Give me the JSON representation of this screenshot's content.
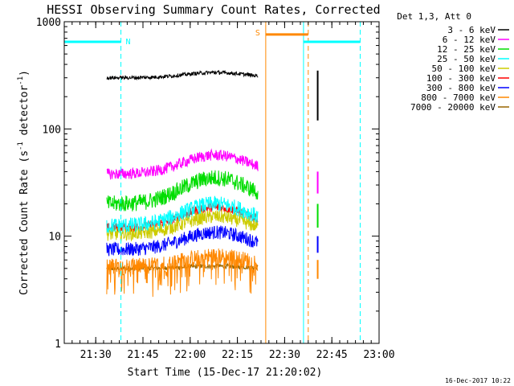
{
  "chart_data": {
    "type": "line",
    "title": "HESSI Observing Summary Count Rates, Corrected",
    "xlabel": "Start Time (15-Dec-17 21:20:02)",
    "ylabel_prefix": "Corrected Count Rate (s",
    "ylabel_exp1": "-1",
    "ylabel_mid": " detector",
    "ylabel_exp2": "-1",
    "ylabel_suffix": ")",
    "x_unit": "minutes since 21:20",
    "xlim": [
      0,
      100
    ],
    "ylim": [
      1,
      1000
    ],
    "yscale": "log",
    "x_ticks": [
      {
        "value": 10,
        "label": "21:30"
      },
      {
        "value": 25,
        "label": "21:45"
      },
      {
        "value": 40,
        "label": "22:00"
      },
      {
        "value": 55,
        "label": "22:15"
      },
      {
        "value": 70,
        "label": "22:30"
      },
      {
        "value": 85,
        "label": "22:45"
      },
      {
        "value": 100,
        "label": "23:00"
      }
    ],
    "y_ticks": [
      {
        "value": 1,
        "label": "1"
      },
      {
        "value": 10,
        "label": "10"
      },
      {
        "value": 100,
        "label": "100"
      },
      {
        "value": 1000,
        "label": "1000"
      }
    ],
    "legend_title": "Det 1,3, Att 0",
    "legend_position": "top-right, outside plot",
    "series": [
      {
        "name": "3 - 6 keV",
        "color": "#000000",
        "start": 13.5,
        "end": 61.5,
        "base": 300,
        "noise": 0.04,
        "bump": 0.12
      },
      {
        "name": "6 - 12 keV",
        "color": "#ff00ff",
        "start": 13.5,
        "end": 61.5,
        "base": 38,
        "noise": 0.12,
        "bump": 0.5
      },
      {
        "name": "12 - 25 keV",
        "color": "#00dd00",
        "start": 13.5,
        "end": 61.5,
        "base": 20,
        "noise": 0.18,
        "bump": 0.75
      },
      {
        "name": "25 - 50 keV",
        "color": "#00ffff",
        "start": 13.5,
        "end": 61.5,
        "base": 12.5,
        "noise": 0.17,
        "bump": 0.6
      },
      {
        "name": "50 - 100 keV",
        "color": "#cccc00",
        "start": 13.5,
        "end": 61.5,
        "base": 10.5,
        "noise": 0.15,
        "bump": 0.45
      },
      {
        "name": "100 - 300 keV",
        "color": "#ff0000",
        "start": 13.5,
        "end": 61.5,
        "base": 12,
        "noise": 0.1,
        "bump": 0.55
      },
      {
        "name": "300 - 800 keV",
        "color": "#0000ff",
        "start": 13.5,
        "end": 61.5,
        "base": 7.5,
        "noise": 0.15,
        "bump": 0.45
      },
      {
        "name": "800 - 7000 keV",
        "color": "#ff8800",
        "start": 13.5,
        "end": 61.5,
        "base": 5.2,
        "noise": 0.18,
        "bump": 0.25
      },
      {
        "name": "7000 - 20000 keV",
        "color": "#996600",
        "start": 13.5,
        "end": 61.5,
        "base": 5.0,
        "noise": 0.05,
        "bump": 0.05
      }
    ],
    "late_samples": {
      "x": 80.5,
      "black": [
        350,
        120
      ],
      "magenta": [
        40,
        25
      ],
      "green": [
        20,
        12
      ],
      "blue": [
        10,
        7
      ],
      "orange": [
        6,
        4
      ]
    },
    "flag_bars": [
      {
        "label": "N",
        "color": "#00ffff",
        "segments": [
          [
            0,
            18
          ],
          [
            76,
            94
          ]
        ],
        "y": 650
      },
      {
        "label": "S",
        "color": "#ff8800",
        "segments": [
          [
            64,
            77.5
          ]
        ],
        "y": 760
      }
    ],
    "flag_verticals": [
      {
        "x": 0,
        "color": "#00ffff",
        "dashed": false
      },
      {
        "x": 18,
        "color": "#00ffff",
        "dashed": true
      },
      {
        "x": 76,
        "color": "#00ffff",
        "dashed": false
      },
      {
        "x": 94,
        "color": "#00ffff",
        "dashed": true
      },
      {
        "x": 64,
        "color": "#ff8800",
        "dashed": false
      },
      {
        "x": 77.5,
        "color": "#ff8800",
        "dashed": true
      }
    ]
  },
  "footer": {
    "date_stamp": "16-Dec-2017 10:22"
  }
}
